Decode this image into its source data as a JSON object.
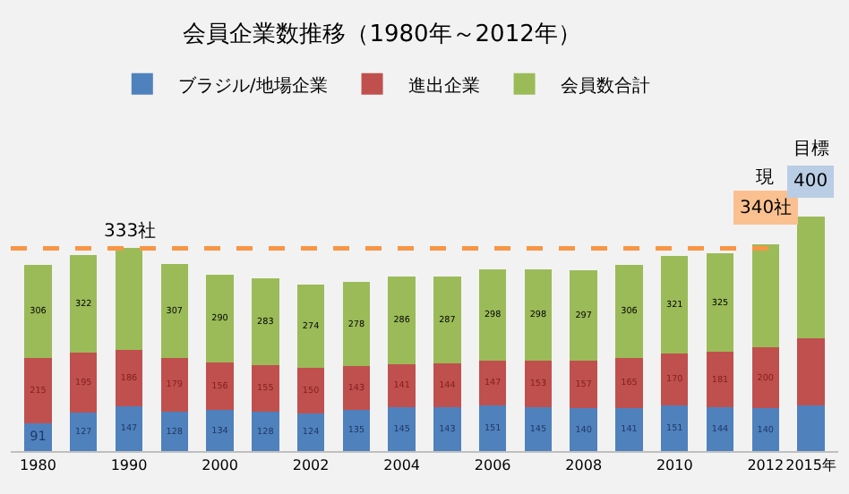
{
  "chart_data": {
    "type": "bar",
    "stacked": true,
    "title": "会員企業数推移（1980年～2012年）",
    "categories": [
      "1980",
      null,
      "1990",
      null,
      "2000",
      null,
      "2002",
      null,
      "2004",
      null,
      "2006",
      null,
      "2008",
      null,
      "2010",
      null,
      "2012",
      "2015年"
    ],
    "series": [
      {
        "name": "ブラジル/地場企業",
        "color": "#4f81bd",
        "values": [
          91,
          127,
          147,
          128,
          134,
          128,
          124,
          135,
          145,
          143,
          151,
          145,
          140,
          141,
          151,
          144,
          140,
          150
        ],
        "value_labels": [
          "91",
          "127",
          "147",
          "128",
          "134",
          "128",
          "124",
          "135",
          "145",
          "143",
          "151",
          "145",
          "140",
          "141",
          "151",
          "144",
          "140",
          null
        ]
      },
      {
        "name": "進出企業",
        "color": "#c0504d",
        "values": [
          215,
          195,
          186,
          179,
          156,
          155,
          150,
          143,
          141,
          144,
          147,
          153,
          157,
          165,
          170,
          181,
          200,
          220
        ],
        "value_labels": [
          "215",
          "195",
          "186",
          "179",
          "156",
          "155",
          "150",
          "143",
          "141",
          "144",
          "147",
          "153",
          "157",
          "165",
          "170",
          "181",
          "200",
          null
        ]
      },
      {
        "name": "会員数合計",
        "color": "#9bbb59",
        "values": [
          306,
          322,
          333,
          307,
          290,
          283,
          274,
          278,
          286,
          287,
          298,
          298,
          297,
          306,
          321,
          325,
          340,
          400
        ],
        "value_labels": [
          "306",
          "322",
          null,
          "307",
          "290",
          "283",
          "274",
          "278",
          "286",
          "287",
          "298",
          "298",
          "297",
          "306",
          "321",
          "325",
          null,
          null
        ]
      }
    ],
    "ref_lines": [
      {
        "axis": "y",
        "value": 666,
        "label": "333社",
        "color": "#f79646",
        "line_style": "dashed"
      }
    ],
    "annotations": [
      "現",
      {
        "text": "340社",
        "x": "2012",
        "y": 680
      },
      "目標",
      {
        "text": "400",
        "x": "2015年",
        "y": 770
      }
    ],
    "legend": "top",
    "grid": false,
    "tick_labels": "x"
  }
}
